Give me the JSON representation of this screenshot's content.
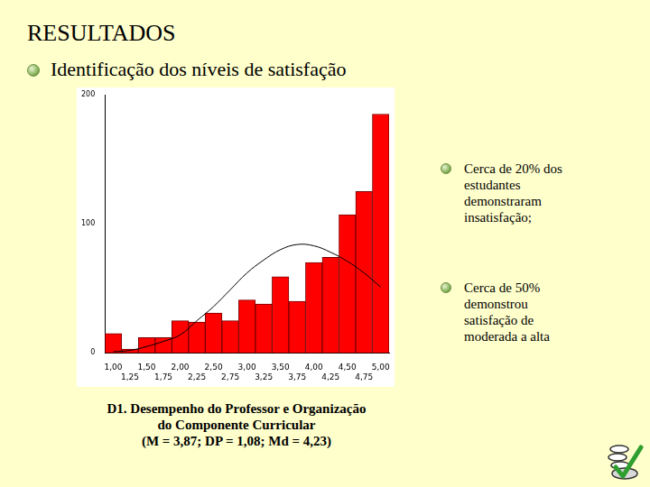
{
  "title": "RESULTADOS",
  "subtitle": "Identificação dos níveis de satisfação",
  "bullets": [
    "Cerca de  20% dos estudantes demonstraram insatisfação;",
    "Cerca de 50% demonstrou satisfação de moderada a alta"
  ],
  "caption": [
    "D1. Desempenho do Professor e Organização",
    "do Componente Curricular",
    "(M = 3,87; DP = 1,08; Md = 4,23)"
  ],
  "chart_data": {
    "type": "bar",
    "categories": [
      "1,00",
      "1,25",
      "1,50",
      "1,75",
      "2,00",
      "2,25",
      "2,50",
      "2,75",
      "3,00",
      "3,25",
      "3,50",
      "3,75",
      "4,00",
      "4,25",
      "4,50",
      "4,75",
      "5,00"
    ],
    "series": [
      {
        "type": "bar",
        "color": "#ff0000",
        "values": [
          15,
          3,
          12,
          12,
          25,
          24,
          31,
          25,
          41,
          38,
          59,
          40,
          70,
          74,
          107,
          125,
          185
        ]
      },
      {
        "type": "line",
        "color": "#000000",
        "values": [
          1,
          2,
          5,
          9,
          14,
          25,
          36,
          49,
          62,
          72,
          80,
          84,
          83,
          78,
          71,
          62,
          51
        ]
      }
    ],
    "ylim": [
      0,
      200
    ],
    "yticks": [
      0,
      100,
      200
    ],
    "grid": false
  }
}
